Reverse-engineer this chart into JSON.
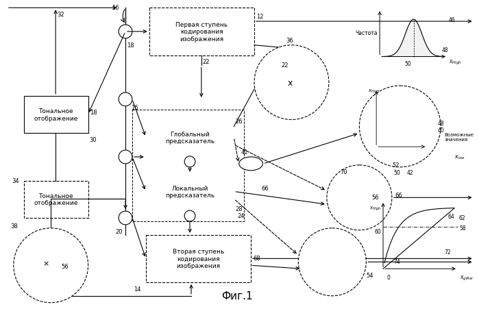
{
  "title": "Фиг.1",
  "bg_color": "#ffffff",
  "box1_label": "Первая ступень\nкодирования\nизображения",
  "box2_label": "Глобальный\nпредсказатель",
  "box3_label": "Локальный\nпредсказатель",
  "box4_label": "Вторая ступень\nкодирования\nизображения",
  "box5_label": "Тональное\nотображение",
  "box6_label": "Тональное\nотображение",
  "freq_label": "Частота",
  "possible_label": "Возможные\nзначения"
}
